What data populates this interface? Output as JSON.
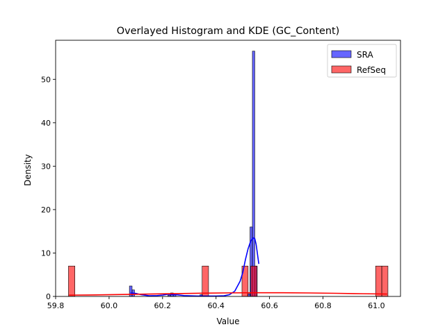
{
  "chart_data": {
    "type": "histogram_kde",
    "title": "Overlayed Histogram and KDE (GC_Content)",
    "xlabel": "Value",
    "ylabel": "Density",
    "xlim": [
      59.8,
      61.09
    ],
    "ylim": [
      0,
      59
    ],
    "xticks": [
      59.8,
      60.0,
      60.2,
      60.4,
      60.6,
      60.8,
      61.0
    ],
    "xtick_labels": [
      "59.8",
      "60.0",
      "60.2",
      "60.4",
      "60.6",
      "60.8",
      "61.0"
    ],
    "yticks": [
      0,
      10,
      20,
      30,
      40,
      50
    ],
    "ytick_labels": [
      "0",
      "10",
      "20",
      "30",
      "40",
      "50"
    ],
    "grid": false,
    "legend_position": "top-right",
    "series": [
      {
        "name": "SRA",
        "color": "#0000ff",
        "bar_alpha": 0.6,
        "bars": [
          {
            "x0": 60.076,
            "x1": 60.086,
            "value": 2.4
          },
          {
            "x0": 60.086,
            "x1": 60.095,
            "value": 1.5
          },
          {
            "x0": 60.22,
            "x1": 60.23,
            "value": 0.3
          },
          {
            "x0": 60.23,
            "x1": 60.24,
            "value": 0.8
          },
          {
            "x0": 60.24,
            "x1": 60.25,
            "value": 0.4
          },
          {
            "x0": 60.34,
            "x1": 60.35,
            "value": 0.4
          },
          {
            "x0": 60.518,
            "x1": 60.527,
            "value": 0.6
          },
          {
            "x0": 60.527,
            "x1": 60.536,
            "value": 16.0
          },
          {
            "x0": 60.536,
            "x1": 60.545,
            "value": 56.5
          },
          {
            "x0": 60.545,
            "x1": 60.554,
            "value": 7.0
          }
        ],
        "kde": {
          "x": [
            60.08,
            60.1,
            60.12,
            60.15,
            60.18,
            60.2,
            60.22,
            60.25,
            60.28,
            60.3,
            60.33,
            60.35,
            60.38,
            60.4,
            60.43,
            60.45,
            60.47,
            60.49,
            60.5,
            60.51,
            60.52,
            60.53,
            60.54,
            60.545,
            60.55,
            60.56
          ],
          "y": [
            0.8,
            0.7,
            0.4,
            0.15,
            0.2,
            0.3,
            0.5,
            0.4,
            0.2,
            0.15,
            0.1,
            0.1,
            0.1,
            0.1,
            0.15,
            0.4,
            1.2,
            3.5,
            5.5,
            8.5,
            11.0,
            12.8,
            13.5,
            13.3,
            12.0,
            7.5
          ]
        }
      },
      {
        "name": "RefSeq",
        "color": "#ff0000",
        "bar_alpha": 0.6,
        "bars": [
          {
            "x0": 59.848,
            "x1": 59.872,
            "value": 7.0
          },
          {
            "x0": 60.348,
            "x1": 60.372,
            "value": 7.0
          },
          {
            "x0": 60.497,
            "x1": 60.52,
            "value": 7.0
          },
          {
            "x0": 60.53,
            "x1": 60.553,
            "value": 7.0
          },
          {
            "x0": 60.997,
            "x1": 61.02,
            "value": 7.0
          },
          {
            "x0": 61.02,
            "x1": 61.043,
            "value": 7.0
          }
        ],
        "kde": {
          "x": [
            59.85,
            59.95,
            60.05,
            60.15,
            60.25,
            60.35,
            60.45,
            60.55,
            60.65,
            60.75,
            60.85,
            60.95,
            61.04
          ],
          "y": [
            0.3,
            0.35,
            0.45,
            0.55,
            0.65,
            0.75,
            0.82,
            0.85,
            0.85,
            0.8,
            0.72,
            0.62,
            0.55
          ]
        }
      }
    ]
  }
}
